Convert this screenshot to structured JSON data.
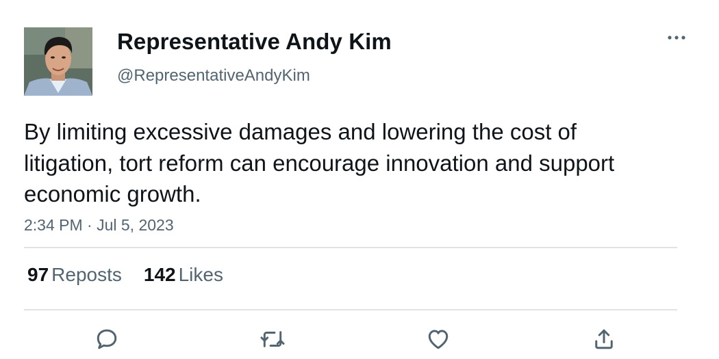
{
  "author": {
    "display_name": "Representative Andy Kim",
    "handle": "@RepresentativeAndyKim",
    "avatar_icon": "profile-photo"
  },
  "tweet": {
    "text": "By limiting excessive damages and lowering the cost of litigation, tort reform can encourage innovation and support economic growth.",
    "timestamp": "2:34 PM · Jul 5, 2023"
  },
  "stats": {
    "reposts_count": "97",
    "reposts_label": "Reposts",
    "likes_count": "142",
    "likes_label": "Likes"
  },
  "actions": {
    "reply_icon": "reply-icon",
    "repost_icon": "repost-icon",
    "like_icon": "heart-icon",
    "share_icon": "share-icon"
  },
  "colors": {
    "text_primary": "#0f1419",
    "text_secondary": "#536471",
    "divider": "#dfe3e6"
  }
}
